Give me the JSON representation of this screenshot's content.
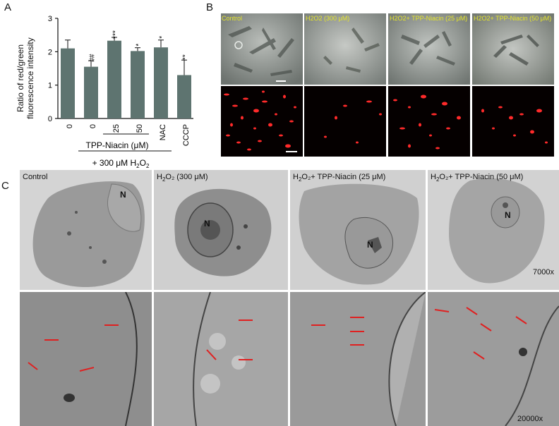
{
  "panel_letters": {
    "a": "A",
    "b": "B",
    "c": "C"
  },
  "chart_data": {
    "type": "bar",
    "ylabel": "Ratio of red/green fluorescence intensity",
    "ylabel_line1": "Ratio of red/green",
    "ylabel_line2": "fluorescence intensity",
    "ylim": [
      0,
      3
    ],
    "yticks": [
      "0",
      "1",
      "2",
      "3"
    ],
    "categories": [
      "0",
      "0",
      "25",
      "50",
      "NAC",
      "CCCP"
    ],
    "values": [
      2.1,
      1.55,
      2.33,
      2.02,
      2.13,
      1.3
    ],
    "errors": [
      0.25,
      0.18,
      0.1,
      0.1,
      0.22,
      0.45
    ],
    "significance": [
      "",
      "##",
      "***",
      "*",
      "*",
      "**"
    ],
    "group_label": "TPP-Niacin (μM)",
    "treatment_label_prefix": "+ 300 μM H",
    "treatment_label_sub": "2",
    "treatment_label_suffix": "O",
    "treatment_label_sub2": "2",
    "bar_color": "#5e7470"
  },
  "panel_b": {
    "labels": [
      "Control",
      "H2O2 (300 μM)",
      "H2O2+ TPP-Niacin (25 μM)",
      "H2O2+ TPP-Niacin (50 μM)"
    ]
  },
  "panel_c": {
    "labels": [
      {
        "pre": "Control",
        "sub": "",
        "post": ""
      },
      {
        "pre": "H",
        "sub": "2",
        "post": "O₂ (300 μM)"
      },
      {
        "pre": "H",
        "sub": "2",
        "post": "O₂+ TPP-Niacin (25 μM)"
      },
      {
        "pre": "H",
        "sub": "2",
        "post": "O₂+ TPP-Niacin (50 μM)"
      }
    ],
    "nucleus_label": "N",
    "mag_top": "7000x",
    "mag_bottom": "20000x"
  }
}
